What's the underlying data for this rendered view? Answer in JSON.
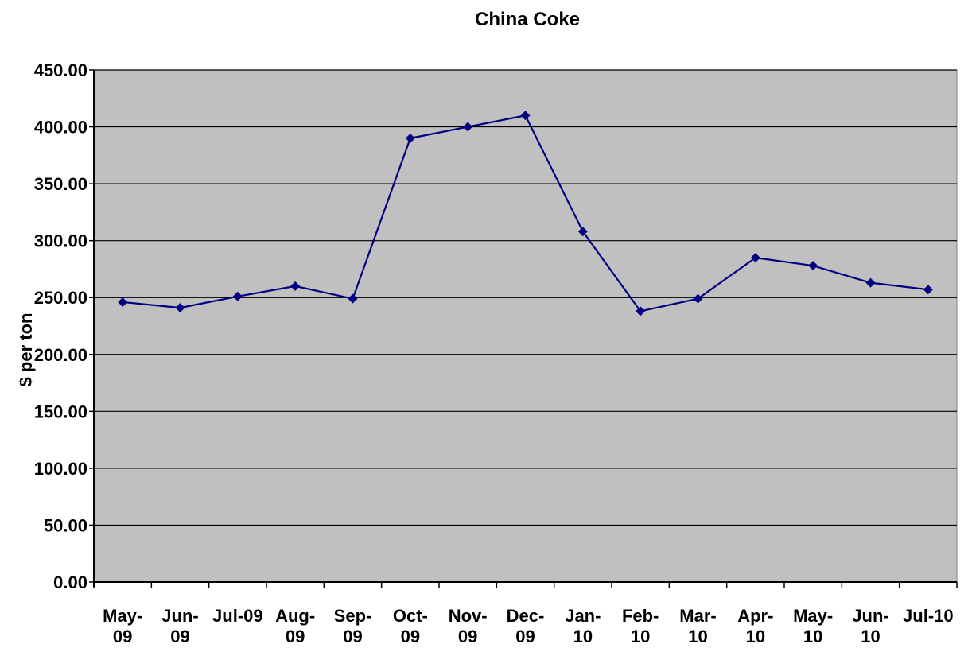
{
  "chart_data": {
    "type": "line",
    "title": "China Coke",
    "xlabel": "",
    "ylabel": "$ per ton",
    "ylim": [
      0,
      450
    ],
    "yticks": [
      "0.00",
      "50.00",
      "100.00",
      "150.00",
      "200.00",
      "250.00",
      "300.00",
      "350.00",
      "400.00",
      "450.00"
    ],
    "grid": true,
    "plot_background": "#c0c0c0",
    "line_color": "#000080",
    "categories": [
      {
        "line1": "May-",
        "line2": "09"
      },
      {
        "line1": "Jun-",
        "line2": "09"
      },
      {
        "line1": "Jul-09",
        "line2": ""
      },
      {
        "line1": "Aug-",
        "line2": "09"
      },
      {
        "line1": "Sep-",
        "line2": "09"
      },
      {
        "line1": "Oct-",
        "line2": "09"
      },
      {
        "line1": "Nov-",
        "line2": "09"
      },
      {
        "line1": "Dec-",
        "line2": "09"
      },
      {
        "line1": "Jan-",
        "line2": "10"
      },
      {
        "line1": "Feb-",
        "line2": "10"
      },
      {
        "line1": "Mar-",
        "line2": "10"
      },
      {
        "line1": "Apr-",
        "line2": "10"
      },
      {
        "line1": "May-",
        "line2": "10"
      },
      {
        "line1": "Jun-",
        "line2": "10"
      },
      {
        "line1": "Jul-10",
        "line2": ""
      }
    ],
    "series": [
      {
        "values": [
          246,
          241,
          251,
          260,
          249,
          390,
          400,
          410,
          308,
          238,
          249,
          285,
          278,
          263,
          257
        ]
      }
    ]
  }
}
